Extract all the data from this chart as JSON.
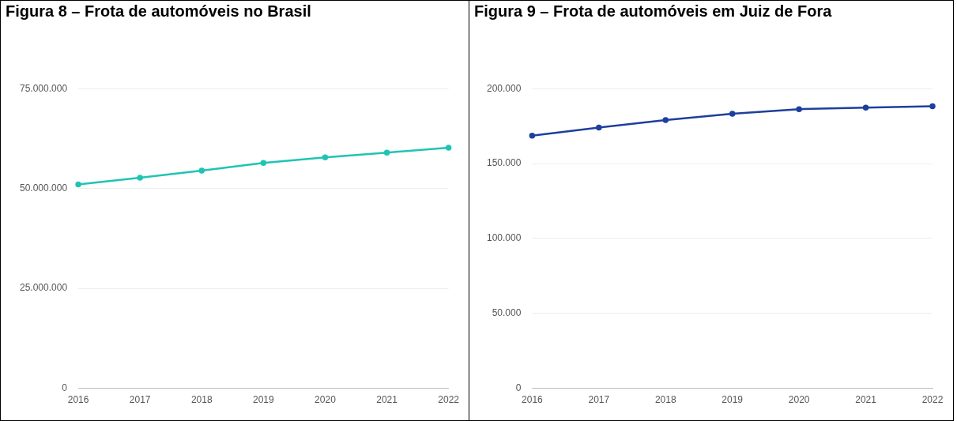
{
  "chart_data": [
    {
      "type": "line",
      "title": "Figura 8 – Frota de automóveis no Brasil",
      "categories": [
        "2016",
        "2017",
        "2018",
        "2019",
        "2020",
        "2021",
        "2022"
      ],
      "series": [
        {
          "color": "#20c4b4",
          "values": [
            51000000,
            52700000,
            54500000,
            56400000,
            57800000,
            59000000,
            60200000
          ]
        }
      ],
      "ylim": [
        0,
        75000000
      ],
      "yticks": [
        {
          "value": 0,
          "label": "0"
        },
        {
          "value": 25000000,
          "label": "25.000.000"
        },
        {
          "value": 50000000,
          "label": "50.000.000"
        },
        {
          "value": 75000000,
          "label": "75.000.000"
        }
      ],
      "grid": "y",
      "legend": false,
      "marker": "circle",
      "line_style": "solid"
    },
    {
      "type": "line",
      "title": "Figura 9 – Frota de automóveis em Juiz de Fora",
      "categories": [
        "2016",
        "2017",
        "2018",
        "2019",
        "2020",
        "2021",
        "2022"
      ],
      "series": [
        {
          "color": "#1e3f9c",
          "values": [
            168600,
            174000,
            179000,
            183200,
            186300,
            187300,
            188300
          ]
        }
      ],
      "ylim": [
        0,
        200000
      ],
      "yticks": [
        {
          "value": 0,
          "label": "0"
        },
        {
          "value": 50000,
          "label": "50.000"
        },
        {
          "value": 100000,
          "label": "100.000"
        },
        {
          "value": 150000,
          "label": "150.000"
        },
        {
          "value": 200000,
          "label": "200.000"
        }
      ],
      "grid": "y",
      "legend": false,
      "marker": "circle",
      "line_style": "solid"
    }
  ]
}
